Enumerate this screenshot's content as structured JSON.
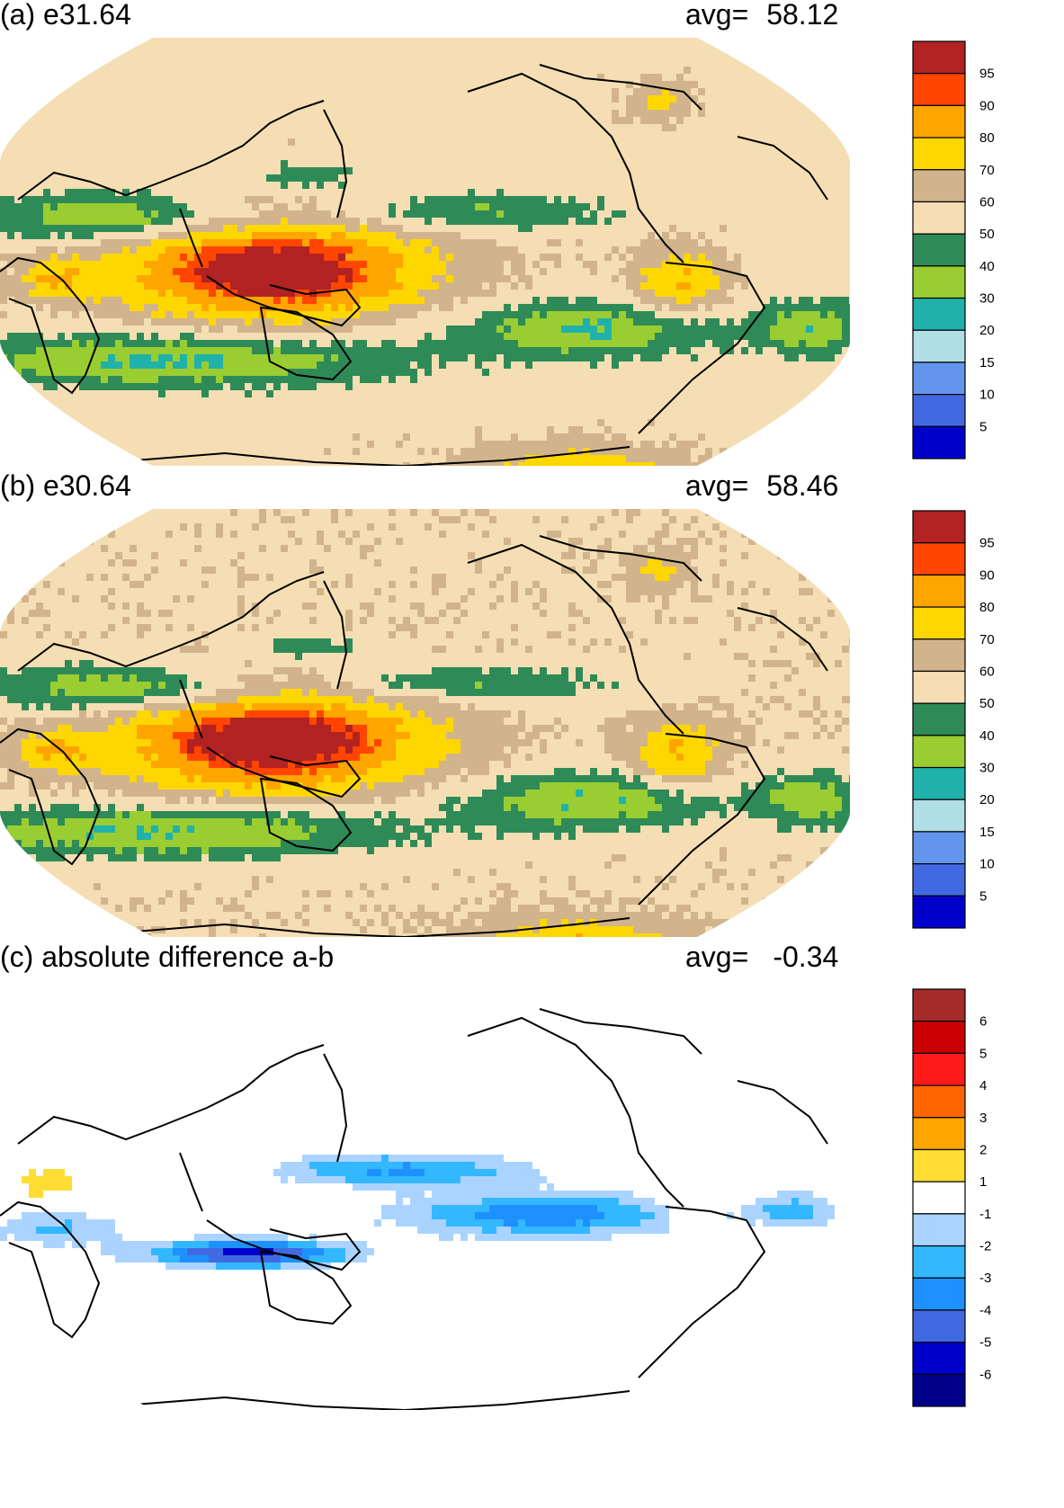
{
  "panels": [
    {
      "title": "(a) e31.64",
      "avg_label": "avg=",
      "avg_value": "58.12",
      "colorbar": {
        "labels": [
          "95",
          "90",
          "80",
          "70",
          "60",
          "50",
          "40",
          "30",
          "20",
          "15",
          "10",
          "5"
        ],
        "colors": [
          "#b22222",
          "#ff4500",
          "#ffa500",
          "#ffd700",
          "#d2b48c",
          "#f5deb3",
          "#2e8b57",
          "#9acd32",
          "#20b2aa",
          "#b0e0e6",
          "#6495ed",
          "#4169e1",
          "#0000cd"
        ]
      }
    },
    {
      "title": "(b) e30.64",
      "avg_label": "avg=",
      "avg_value": "58.46",
      "colorbar": {
        "labels": [
          "95",
          "90",
          "80",
          "70",
          "60",
          "50",
          "40",
          "30",
          "20",
          "15",
          "10",
          "5"
        ],
        "colors": [
          "#b22222",
          "#ff4500",
          "#ffa500",
          "#ffd700",
          "#d2b48c",
          "#f5deb3",
          "#2e8b57",
          "#9acd32",
          "#20b2aa",
          "#b0e0e6",
          "#6495ed",
          "#4169e1",
          "#0000cd"
        ]
      }
    },
    {
      "title": "(c) absolute difference a-b",
      "avg_label": "avg=",
      "avg_value": "-0.34",
      "colorbar": {
        "labels": [
          "6",
          "5",
          "4",
          "3",
          "2",
          "1",
          "-1",
          "-2",
          "-3",
          "-4",
          "-5",
          "-6"
        ],
        "colors": [
          "#a52a2a",
          "#cc0000",
          "#ff1a1a",
          "#ff6600",
          "#ffa500",
          "#ffdd33",
          "#ffffff",
          "#aad4ff",
          "#33b8ff",
          "#1e90ff",
          "#4169e1",
          "#0000cd",
          "#00008b"
        ]
      }
    }
  ]
}
